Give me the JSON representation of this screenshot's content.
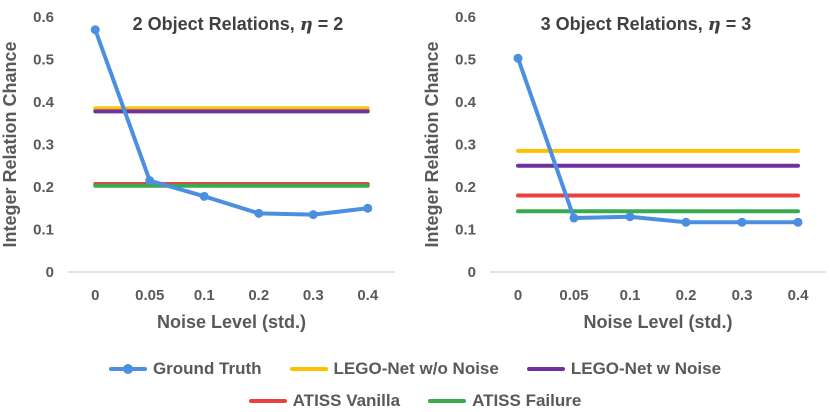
{
  "chart_data": [
    {
      "type": "line",
      "title": "2 Object Relations,  η = 2",
      "title_main": "2 Object Relations,",
      "title_eta": "η",
      "title_eq": " = 2",
      "xlabel": "Noise Level (std.)",
      "ylabel": "Integer Relation Chance",
      "ylim": [
        0,
        0.6
      ],
      "yticks": [
        "0",
        "0.1",
        "0.2",
        "0.3",
        "0.4",
        "0.5",
        "0.6"
      ],
      "categories": [
        "0",
        "0.05",
        "0.1",
        "0.2",
        "0.3",
        "0.4"
      ],
      "series": [
        {
          "name": "Ground Truth",
          "values": [
            0.57,
            0.215,
            0.178,
            0.138,
            0.135,
            0.15
          ],
          "markers": true
        },
        {
          "name": "LEGO-Net w/o Noise",
          "values": [
            0.385,
            0.385,
            0.385,
            0.385,
            0.385,
            0.385
          ]
        },
        {
          "name": "LEGO-Net w Noise",
          "values": [
            0.378,
            0.378,
            0.378,
            0.378,
            0.378,
            0.378
          ]
        },
        {
          "name": "ATISS Vanilla",
          "values": [
            0.207,
            0.207,
            0.207,
            0.207,
            0.207,
            0.207
          ]
        },
        {
          "name": "ATISS Failure",
          "values": [
            0.203,
            0.203,
            0.203,
            0.203,
            0.203,
            0.203
          ]
        }
      ]
    },
    {
      "type": "line",
      "title": "3 Object Relations,  η = 3",
      "title_main": "3 Object Relations,",
      "title_eta": "η",
      "title_eq": " = 3",
      "xlabel": "Noise Level (std.)",
      "ylabel": "Integer Relation Chance",
      "ylim": [
        0,
        0.6
      ],
      "yticks": [
        "0",
        "0.1",
        "0.2",
        "0.3",
        "0.4",
        "0.5",
        "0.6"
      ],
      "categories": [
        "0",
        "0.05",
        "0.1",
        "0.2",
        "0.3",
        "0.4"
      ],
      "series": [
        {
          "name": "Ground Truth",
          "values": [
            0.503,
            0.127,
            0.13,
            0.117,
            0.117,
            0.117
          ],
          "markers": true
        },
        {
          "name": "LEGO-Net w/o Noise",
          "values": [
            0.285,
            0.285,
            0.285,
            0.285,
            0.285,
            0.285
          ]
        },
        {
          "name": "LEGO-Net w Noise",
          "values": [
            0.25,
            0.25,
            0.25,
            0.25,
            0.25,
            0.25
          ]
        },
        {
          "name": "ATISS Vanilla",
          "values": [
            0.18,
            0.18,
            0.18,
            0.18,
            0.18,
            0.18
          ]
        },
        {
          "name": "ATISS Failure",
          "values": [
            0.143,
            0.143,
            0.143,
            0.143,
            0.143,
            0.143
          ]
        }
      ]
    }
  ],
  "legend": [
    {
      "name": "Ground Truth",
      "color": "#4a8fe0",
      "marker": true
    },
    {
      "name": "LEGO-Net w/o Noise",
      "color": "#ffc000",
      "marker": false
    },
    {
      "name": "LEGO-Net w Noise",
      "color": "#7030a0",
      "marker": false
    },
    {
      "name": "ATISS Vanilla",
      "color": "#e8413c",
      "marker": false
    },
    {
      "name": "ATISS Failure",
      "color": "#3aaa4e",
      "marker": false
    }
  ],
  "colors": {
    "Ground Truth": "#4a8fe0",
    "LEGO-Net w/o Noise": "#ffc000",
    "LEGO-Net w Noise": "#7030a0",
    "ATISS Vanilla": "#e8413c",
    "ATISS Failure": "#3aaa4e",
    "axis": "#d9d9d9",
    "text": "#595959"
  }
}
